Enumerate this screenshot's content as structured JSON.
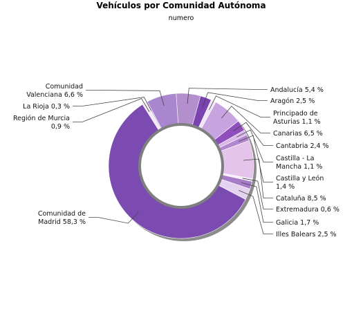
{
  "chart_data": {
    "type": "pie",
    "title": "Vehículos por Comunidad Autónoma",
    "subtitle": "numero",
    "unit": "%",
    "slices": [
      {
        "key": "andalucia",
        "label": [
          "Andalucía 5,4 %"
        ],
        "value": 5.4,
        "color": "#b38fce"
      },
      {
        "key": "aragon",
        "label": [
          "Aragón 2,5 %"
        ],
        "value": 2.5,
        "color": "#7a44b0"
      },
      {
        "key": "asturias",
        "label": [
          "Principado de",
          "Asturias 1,1 %"
        ],
        "value": 1.1,
        "color": "#f0e6f7"
      },
      {
        "key": "canarias",
        "label": [
          "Canarias 6,5 %"
        ],
        "value": 6.5,
        "color": "#c7a4df"
      },
      {
        "key": "cantabria",
        "label": [
          "Cantabria 2,4 %"
        ],
        "value": 2.4,
        "color": "#8e4fbc"
      },
      {
        "key": "castilla-la-mancha",
        "label": [
          "Castilla - La",
          "Mancha 1,1 %"
        ],
        "value": 1.1,
        "color": "#d9b8e8"
      },
      {
        "key": "castilla-y-leon",
        "label": [
          "Castilla y León",
          "1,4 %"
        ],
        "value": 1.4,
        "color": "#b287d0"
      },
      {
        "key": "cataluna",
        "label": [
          "Cataluña 8,5 %"
        ],
        "value": 8.5,
        "color": "#e4c4ea"
      },
      {
        "key": "extremadura",
        "label": [
          "Extremadura 0,6 %"
        ],
        "value": 0.6,
        "color": "#f5eefa"
      },
      {
        "key": "galicia",
        "label": [
          "Galicia 1,7 %"
        ],
        "value": 1.7,
        "color": "#a67cc8"
      },
      {
        "key": "illes-balears",
        "label": [
          "Illes Balears 2,5 %"
        ],
        "value": 2.5,
        "color": "#e3d3f1"
      },
      {
        "key": "madrid",
        "label": [
          "Comunidad de",
          "Madrid 58,3 %"
        ],
        "value": 58.3,
        "color": "#7b4bb2"
      },
      {
        "key": "murcia",
        "label": [
          "Región de Murcia",
          "0,9 %"
        ],
        "value": 0.9,
        "color": "#f3ebf9"
      },
      {
        "key": "la-rioja",
        "label": [
          "La Rioja 0,3 %"
        ],
        "value": 0.3,
        "color": "#c9a9e0"
      },
      {
        "key": "valenciana",
        "label": [
          "Comunidad",
          "Valenciana 6,6 %"
        ],
        "value": 6.6,
        "color": "#aa86ce"
      }
    ]
  }
}
